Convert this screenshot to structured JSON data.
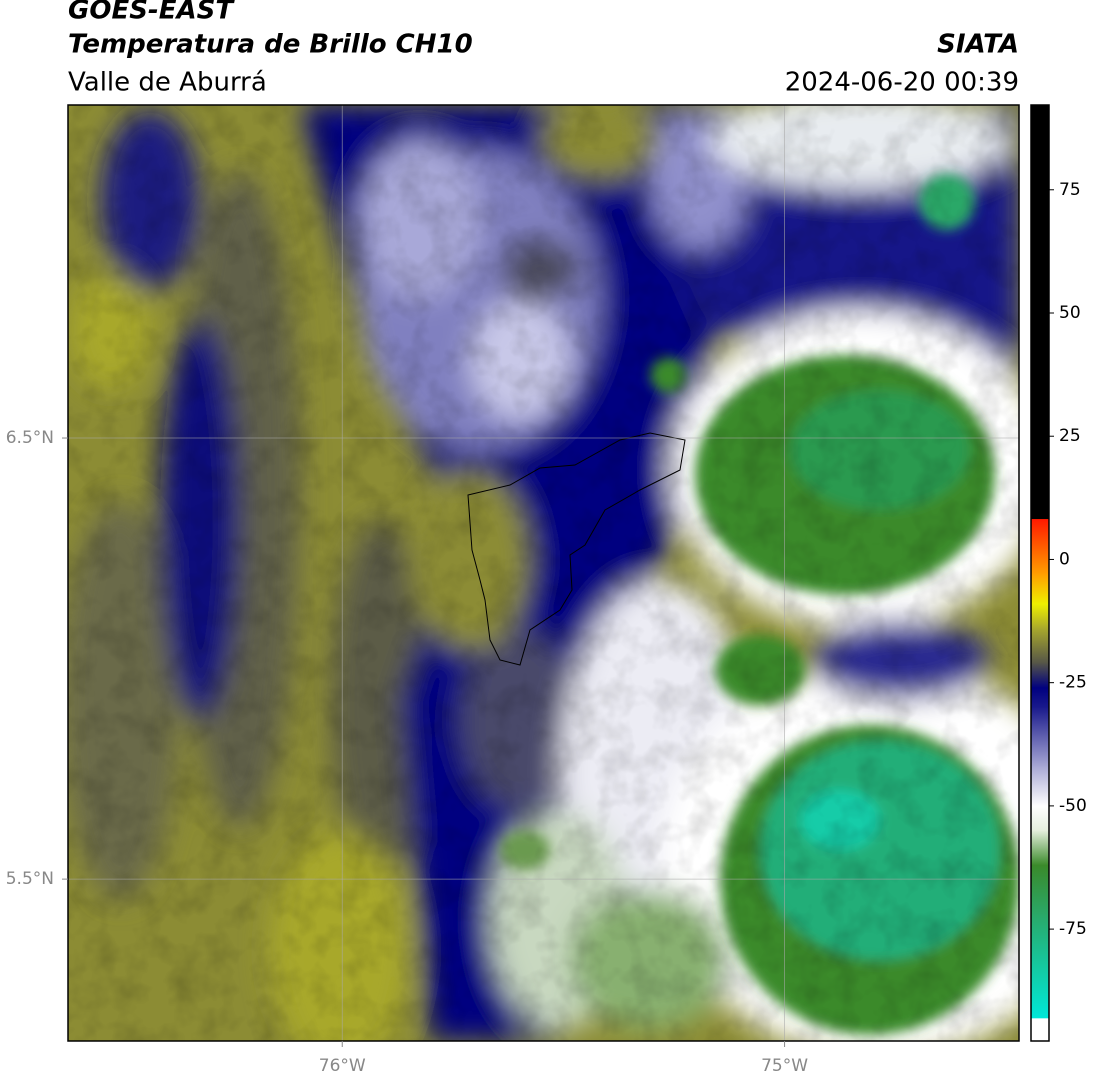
{
  "header": {
    "satellite": "GOES-EAST",
    "product": "Temperatura de Brillo CH10",
    "region": "Valle de Aburrá",
    "organization": "SIATA",
    "datetime": "2024-06-20 00:39"
  },
  "map": {
    "lonlim": [
      -76.62,
      -74.47
    ],
    "latlim": [
      5.133,
      7.255
    ],
    "lonticks": [
      {
        "value": -76,
        "label": "76°W"
      },
      {
        "value": -75,
        "label": "75°W"
      }
    ],
    "latticks": [
      {
        "value": 6.5,
        "label": "6.5°N"
      },
      {
        "value": 5.5,
        "label": "5.5°N"
      }
    ],
    "grid": true
  },
  "colorbar": {
    "lim": [
      -97.7,
      92.2
    ],
    "ticks": [
      75,
      50,
      25,
      0,
      -25,
      -50,
      -75
    ],
    "stops": [
      {
        "value": -97.7,
        "color": "#ffffff"
      },
      {
        "value": -93,
        "color": "#ffffff"
      },
      {
        "value": -93,
        "color": "#00e8d8"
      },
      {
        "value": -72,
        "color": "#2aa868"
      },
      {
        "value": -62,
        "color": "#3a8a2a"
      },
      {
        "value": -55,
        "color": "#e4eedc"
      },
      {
        "value": -50,
        "color": "#ffffff"
      },
      {
        "value": -42,
        "color": "#a8a8d4"
      },
      {
        "value": -30,
        "color": "#1a1a8c"
      },
      {
        "value": -26,
        "color": "#000080"
      },
      {
        "value": -21,
        "color": "#555548"
      },
      {
        "value": -14,
        "color": "#a8a82c"
      },
      {
        "value": -9,
        "color": "#f0f000"
      },
      {
        "value": -3,
        "color": "#ffa000"
      },
      {
        "value": 8.3,
        "color": "#ff1800"
      },
      {
        "value": 8.3,
        "color": "#000000"
      },
      {
        "value": 92.2,
        "color": "#000000"
      }
    ]
  }
}
